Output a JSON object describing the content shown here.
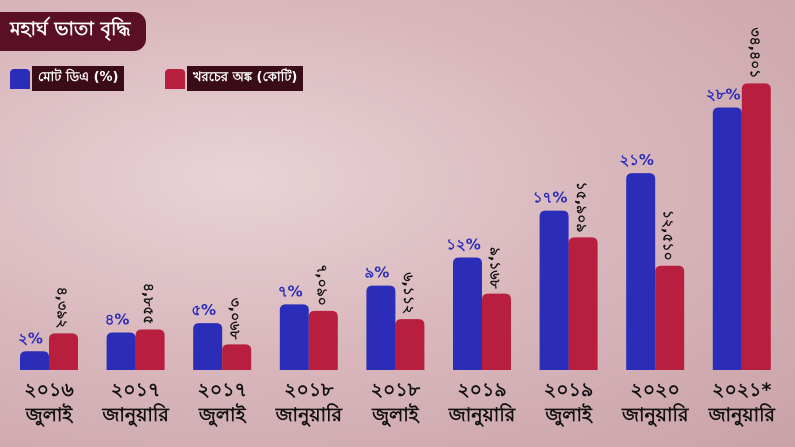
{
  "chart_data": {
    "type": "bar",
    "title": "মহার্ঘ ভাতা বৃদ্ধি",
    "categories": [
      "২০১৬ জুলাই",
      "২০১৭ জানুয়ারি",
      "২০১৭ জুলাই",
      "২০১৮ জানুয়ারি",
      "২০১৮ জুলাই",
      "২০১৯ জানুয়ারি",
      "২০১৯ জুলাই",
      "২০২০ জানুয়ারি",
      "২০২১* জানুয়ারি"
    ],
    "series": [
      {
        "name": "মোট ডিএ (%)",
        "color": "#2b2db8",
        "values": [
          2,
          4,
          5,
          7,
          9,
          12,
          17,
          21,
          28
        ],
        "value_labels": [
          "২%",
          "৪%",
          "৫%",
          "৭%",
          "৯%",
          "১২%",
          "১৭%",
          "২১%",
          "২৮%"
        ]
      },
      {
        "name": "খরচের অঙ্ক (কোটি)",
        "color": "#b81f3e",
        "axis": "y2",
        "values": [
          4392,
          4855,
          3068,
          7090,
          6112,
          9168,
          15909,
          12510,
          34401
        ],
        "value_labels": [
          "৪,৩৯২",
          "৪,৮৫৫",
          "৩,০৬৮",
          "৭,০৯০",
          "৬,১১২",
          "৯,১৬৮",
          "১৫,৯০৯",
          "১২,৫১০",
          "৩৪,৪০১"
        ]
      }
    ],
    "ylim": [
      0,
      32
    ],
    "y2lim": [
      0,
      36000
    ]
  }
}
